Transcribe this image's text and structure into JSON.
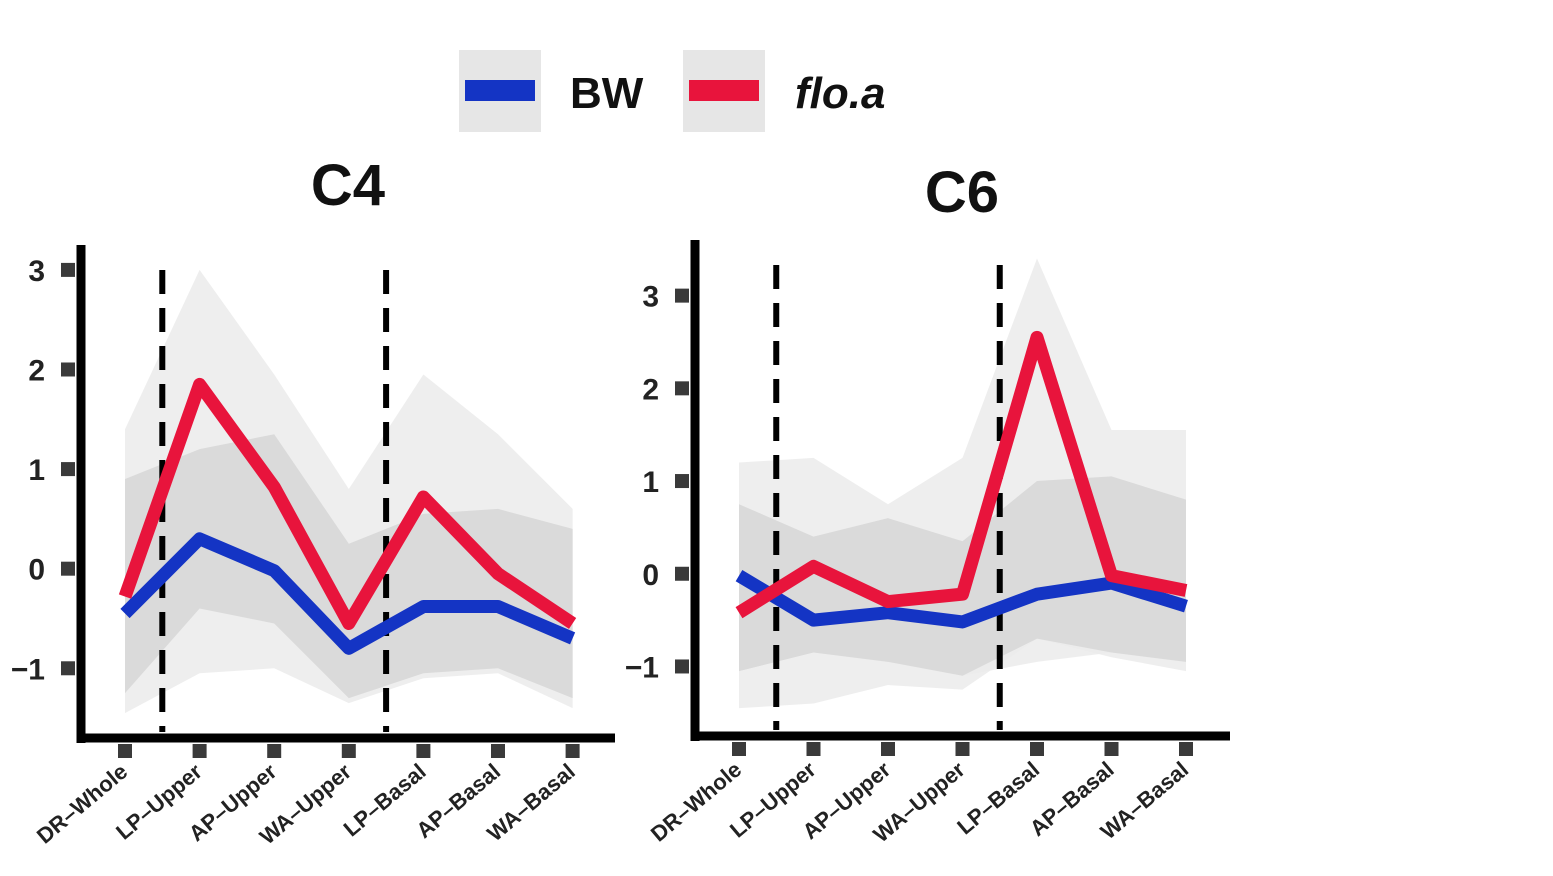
{
  "legend": {
    "entries": [
      {
        "label": "BW",
        "color": "#1434c4",
        "italic": false
      },
      {
        "label": "flo.a",
        "color": "#e8143c",
        "italic": true
      }
    ]
  },
  "colors": {
    "band_outer": "#ebebeb",
    "band_inner": "#d8d8d8",
    "axis": "#000000",
    "tick": "#3a3a3a",
    "dashed": "#000000"
  },
  "chart_data": [
    {
      "type": "line",
      "title": "C4",
      "categories": [
        "DR–Whole",
        "LP–Upper",
        "AP–Upper",
        "WA–Upper",
        "LP–Basal",
        "AP–Basal",
        "WA–Basal"
      ],
      "yticks": [
        -1,
        0,
        1,
        2,
        3
      ],
      "ytick_labels": [
        "−1",
        "0",
        "1",
        "2",
        "3"
      ],
      "ylim": [
        -1.7,
        3.25
      ],
      "dashed_lines_at": [
        0.5,
        3.5
      ],
      "series": [
        {
          "name": "BW",
          "values": [
            -0.45,
            0.3,
            -0.02,
            -0.8,
            -0.38,
            -0.38,
            -0.7
          ],
          "band_lower": [
            -1.25,
            -0.4,
            -0.55,
            -1.3,
            -1.05,
            -1.0,
            -1.3
          ],
          "band_upper": [
            0.9,
            1.2,
            1.35,
            0.25,
            0.55,
            0.6,
            0.4
          ]
        },
        {
          "name": "flo.a",
          "values": [
            -0.28,
            1.85,
            0.82,
            -0.55,
            0.72,
            -0.05,
            -0.55
          ],
          "band_lower": [
            -1.45,
            -1.05,
            -1.0,
            -1.35,
            -1.1,
            -1.05,
            -1.4
          ],
          "band_upper": [
            1.4,
            3.0,
            1.95,
            0.8,
            1.95,
            1.35,
            0.6
          ]
        }
      ]
    },
    {
      "type": "line",
      "title": "C6",
      "categories": [
        "DR–Whole",
        "LP–Upper",
        "AP–Upper",
        "WA–Upper",
        "LP–Basal",
        "AP–Basal",
        "WA–Basal"
      ],
      "yticks": [
        -1,
        0,
        1,
        2,
        3
      ],
      "ytick_labels": [
        "−1",
        "0",
        "1",
        "2",
        "3"
      ],
      "ylim": [
        -1.75,
        3.6
      ],
      "dashed_lines_at": [
        0.5,
        3.5
      ],
      "series": [
        {
          "name": "BW",
          "values": [
            -0.02,
            -0.5,
            -0.42,
            -0.52,
            -0.22,
            -0.1,
            -0.35
          ],
          "band_lower": [
            -1.05,
            -0.85,
            -0.95,
            -1.1,
            -0.95,
            -0.85,
            -0.95
          ],
          "band_upper": [
            0.75,
            0.4,
            0.6,
            0.35,
            1.0,
            1.05,
            0.8
          ]
        },
        {
          "name": "flo.a",
          "values": [
            -0.42,
            0.08,
            -0.3,
            -0.22,
            2.55,
            -0.02,
            -0.18
          ],
          "band_lower": [
            -1.45,
            -1.4,
            -1.2,
            -1.25,
            -0.7,
            -0.9,
            -1.05
          ],
          "band_upper": [
            1.2,
            1.25,
            0.75,
            1.25,
            3.4,
            1.55,
            1.55
          ]
        }
      ]
    }
  ]
}
